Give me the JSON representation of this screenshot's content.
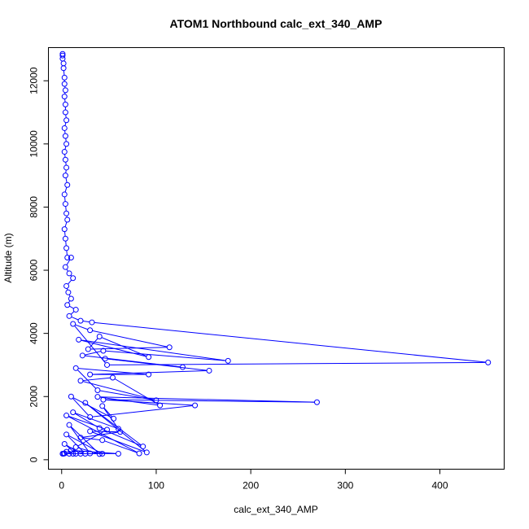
{
  "chart_data": {
    "type": "line",
    "title": "ATOM1 Northbound calc_ext_340_AMP",
    "xlabel": "calc_ext_340_AMP",
    "ylabel": "Altitude (m)",
    "xlim": [
      -14,
      468
    ],
    "ylim": [
      -300,
      13050
    ],
    "xticks": [
      0,
      100,
      200,
      300,
      400
    ],
    "yticks": [
      0,
      2000,
      4000,
      6000,
      8000,
      10000,
      12000
    ],
    "grid": false,
    "color": "#0000ff",
    "marker": "open-circle",
    "series": [
      {
        "points": [
          [
            1,
            12850
          ],
          [
            1,
            12800
          ],
          [
            1,
            12700
          ],
          [
            2,
            12550
          ],
          [
            2,
            12400
          ],
          [
            3,
            12100
          ],
          [
            3,
            11900
          ],
          [
            4,
            11700
          ],
          [
            3,
            11500
          ],
          [
            4,
            11250
          ],
          [
            4,
            11000
          ],
          [
            5,
            10750
          ],
          [
            3,
            10500
          ],
          [
            4,
            10250
          ],
          [
            5,
            10000
          ],
          [
            3,
            9750
          ],
          [
            4,
            9500
          ],
          [
            5,
            9250
          ],
          [
            4,
            9000
          ],
          [
            6,
            8700
          ],
          [
            3,
            8400
          ],
          [
            4,
            8100
          ],
          [
            5,
            7800
          ],
          [
            6,
            7600
          ],
          [
            3,
            7300
          ],
          [
            4,
            7000
          ],
          [
            5,
            6700
          ],
          [
            6,
            6400
          ],
          [
            10,
            6400
          ],
          [
            4,
            6100
          ],
          [
            8,
            5900
          ],
          [
            12,
            5750
          ],
          [
            5,
            5500
          ],
          [
            7,
            5300
          ],
          [
            10,
            5100
          ],
          [
            6,
            4900
          ],
          [
            15,
            4750
          ],
          [
            8,
            4550
          ],
          [
            20,
            4400
          ],
          [
            32,
            4350
          ],
          [
            451,
            3080
          ],
          [
            48,
            3000
          ],
          [
            12,
            4300
          ],
          [
            30,
            4100
          ],
          [
            114,
            3560
          ],
          [
            28,
            3500
          ],
          [
            40,
            3900
          ],
          [
            92,
            3250
          ],
          [
            18,
            3800
          ],
          [
            176,
            3130
          ],
          [
            44,
            3450
          ],
          [
            22,
            3300
          ],
          [
            128,
            2930
          ],
          [
            46,
            3200
          ],
          [
            156,
            2820
          ],
          [
            30,
            2700
          ],
          [
            92,
            2700
          ],
          [
            15,
            2900
          ],
          [
            38,
            2200
          ],
          [
            100,
            1880
          ],
          [
            20,
            2500
          ],
          [
            54,
            2600
          ],
          [
            104,
            1720
          ],
          [
            38,
            1990
          ],
          [
            270,
            1820
          ],
          [
            44,
            1900
          ],
          [
            141,
            1720
          ],
          [
            30,
            1350
          ],
          [
            10,
            2000
          ],
          [
            55,
            1300
          ],
          [
            43,
            1700
          ],
          [
            60,
            980
          ],
          [
            12,
            1500
          ],
          [
            40,
            1000
          ],
          [
            86,
            420
          ],
          [
            25,
            1800
          ],
          [
            90,
            230
          ],
          [
            30,
            900
          ],
          [
            62,
            880
          ],
          [
            20,
            700
          ],
          [
            43,
            620
          ],
          [
            82,
            200
          ],
          [
            5,
            1400
          ],
          [
            48,
            950
          ],
          [
            15,
            400
          ],
          [
            40,
            180
          ],
          [
            8,
            1100
          ],
          [
            30,
            200
          ],
          [
            60,
            190
          ],
          [
            10,
            300
          ],
          [
            25,
            190
          ],
          [
            5,
            800
          ],
          [
            43,
            190
          ],
          [
            15,
            190
          ],
          [
            3,
            500
          ],
          [
            20,
            190
          ],
          [
            8,
            190
          ],
          [
            5,
            250
          ],
          [
            12,
            190
          ],
          [
            2,
            190
          ],
          [
            3,
            200
          ],
          [
            1,
            190
          ]
        ]
      }
    ]
  }
}
